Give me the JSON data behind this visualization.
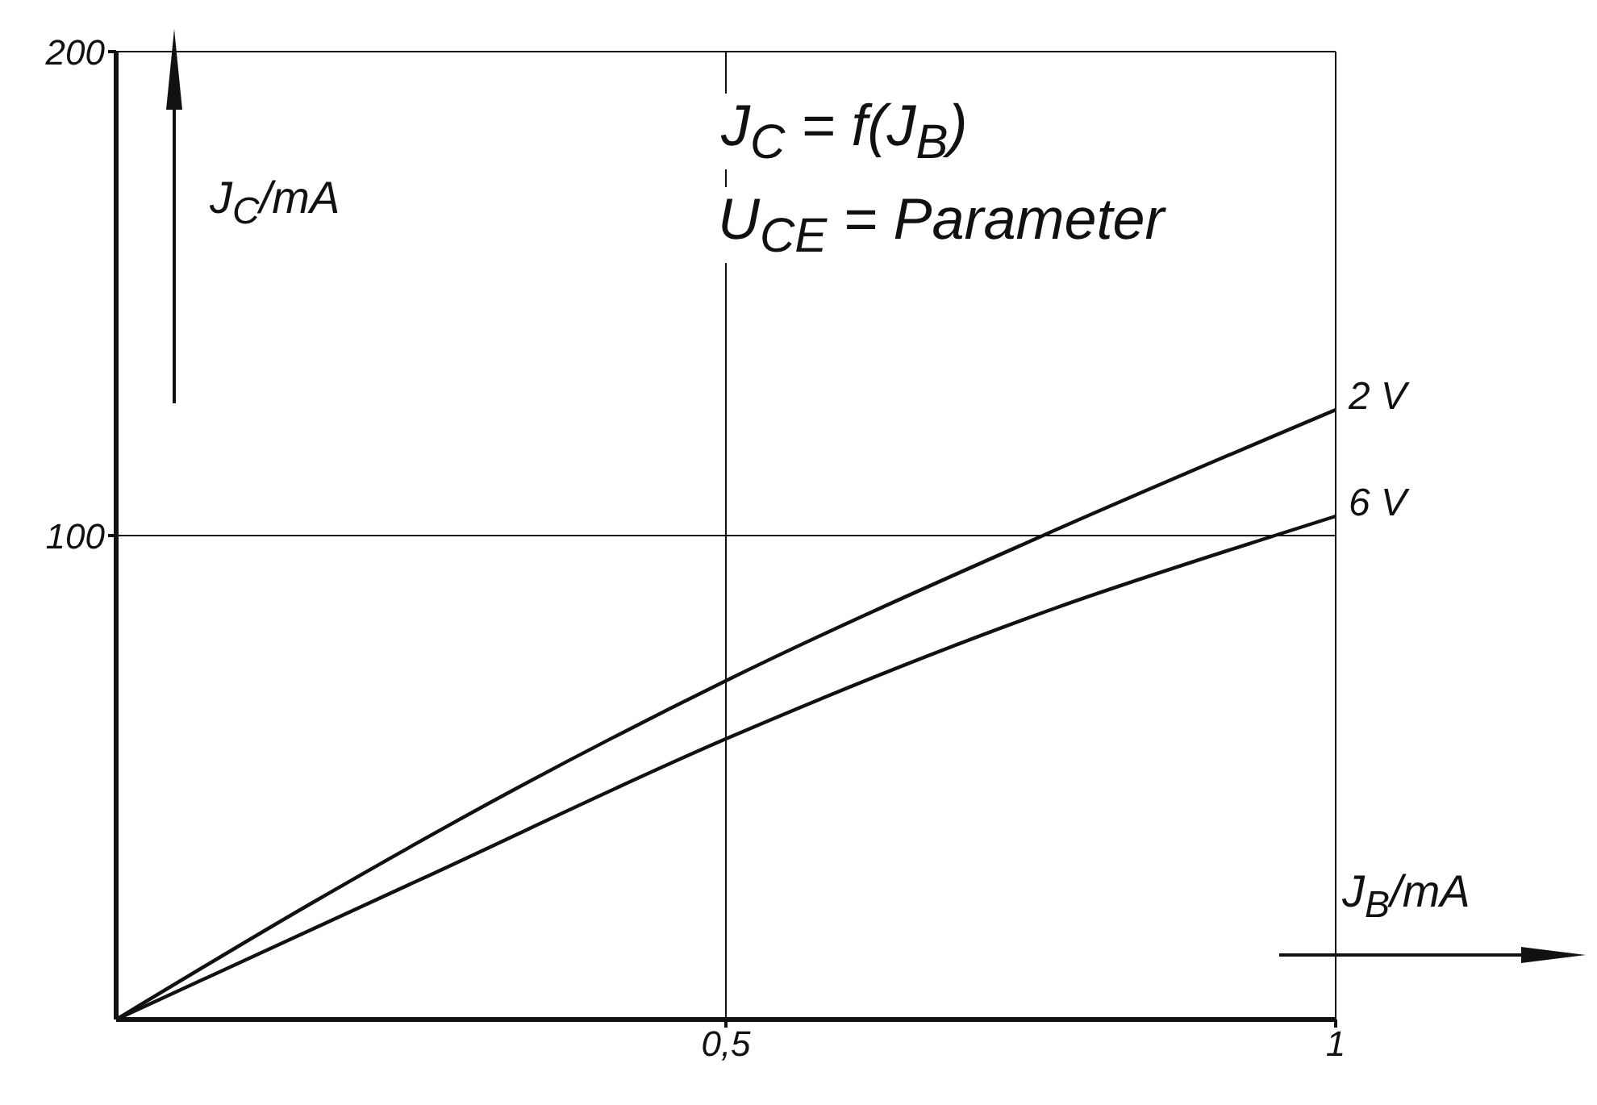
{
  "chart_data": {
    "type": "line",
    "title": "J$_{C}$ = f(J$_{B}$)",
    "subtitle": "U$_{CE}$ = Parameter",
    "xlabel": "J$_{B}$/mA",
    "ylabel": "J$_{C}$/mA",
    "series": [
      {
        "name": "2 V",
        "color": "#111111",
        "x": [
          0,
          0.16,
          0.33,
          0.5,
          0.76,
          1
        ],
        "values": [
          0,
          24,
          48,
          70,
          100,
          126
        ]
      },
      {
        "name": "6 V",
        "color": "#111111",
        "x": [
          0,
          0.25,
          0.5,
          0.77,
          0.95,
          1
        ],
        "values": [
          0,
          29,
          58,
          85,
          100,
          104
        ]
      }
    ],
    "xlim": [
      0,
      1
    ],
    "ylim": [
      0,
      200
    ],
    "xticks": [
      {
        "value": 0.5,
        "label": "0,5"
      },
      1
    ],
    "yticks": [
      100,
      200
    ],
    "grid": true,
    "marker": "none",
    "line_style": "solid"
  }
}
